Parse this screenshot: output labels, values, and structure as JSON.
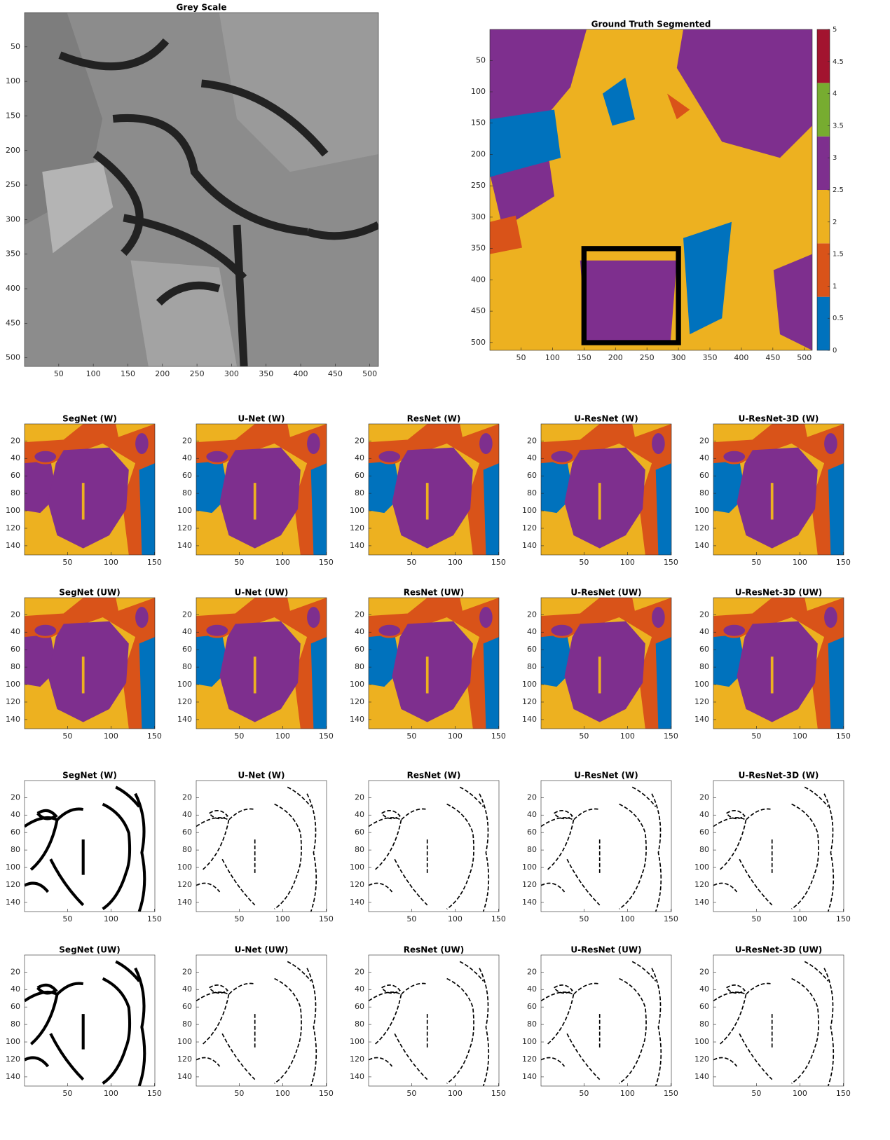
{
  "panels": [
    {
      "title": "Grey Scale",
      "xlim": [
        0.5,
        512.5
      ],
      "ylim": [
        0.5,
        512.5
      ],
      "xticks": [
        50,
        100,
        150,
        200,
        250,
        300,
        350,
        400,
        450,
        500
      ],
      "yticks": [
        50,
        100,
        150,
        200,
        250,
        300,
        350,
        400,
        450,
        500
      ]
    },
    {
      "title": "Ground Truth Segmented",
      "xlim": [
        0.5,
        512.5
      ],
      "ylim": [
        0.5,
        512.5
      ],
      "xticks": [
        50,
        100,
        150,
        200,
        250,
        300,
        350,
        400,
        450,
        500
      ],
      "yticks": [
        50,
        100,
        150,
        200,
        250,
        300,
        350,
        400,
        450,
        500
      ],
      "colorbar": {
        "lim": [
          0,
          5
        ],
        "ticks": [
          0,
          0.5,
          1,
          1.5,
          2,
          2.5,
          3,
          3.5,
          4,
          4.5,
          5
        ],
        "colors": [
          "#0072bd",
          "#d95319",
          "#edb120",
          "#7e2f8e",
          "#77ac30",
          "#a2142f"
        ]
      }
    },
    {
      "title": "SegNet (W)",
      "xlim": [
        0.5,
        150.5
      ],
      "ylim": [
        0.5,
        150.5
      ],
      "xticks": [
        50,
        100,
        150
      ],
      "yticks": [
        20,
        40,
        60,
        80,
        100,
        120,
        140
      ]
    },
    {
      "title": "U-Net (W)",
      "xlim": [
        0.5,
        150.5
      ],
      "ylim": [
        0.5,
        150.5
      ],
      "xticks": [
        50,
        100,
        150
      ],
      "yticks": [
        20,
        40,
        60,
        80,
        100,
        120,
        140
      ]
    },
    {
      "title": "ResNet (W)",
      "xlim": [
        0.5,
        150.5
      ],
      "ylim": [
        0.5,
        150.5
      ],
      "xticks": [
        50,
        100,
        150
      ],
      "yticks": [
        20,
        40,
        60,
        80,
        100,
        120,
        140
      ]
    },
    {
      "title": "U-ResNet (W)",
      "xlim": [
        0.5,
        150.5
      ],
      "ylim": [
        0.5,
        150.5
      ],
      "xticks": [
        50,
        100,
        150
      ],
      "yticks": [
        20,
        40,
        60,
        80,
        100,
        120,
        140
      ]
    },
    {
      "title": "U-ResNet-3D (W)",
      "xlim": [
        0.5,
        150.5
      ],
      "ylim": [
        0.5,
        150.5
      ],
      "xticks": [
        50,
        100,
        150
      ],
      "yticks": [
        20,
        40,
        60,
        80,
        100,
        120,
        140
      ]
    },
    {
      "title": "SegNet (UW)",
      "xlim": [
        0.5,
        150.5
      ],
      "ylim": [
        0.5,
        150.5
      ],
      "xticks": [
        50,
        100,
        150
      ],
      "yticks": [
        20,
        40,
        60,
        80,
        100,
        120,
        140
      ]
    },
    {
      "title": "U-Net (UW)",
      "xlim": [
        0.5,
        150.5
      ],
      "ylim": [
        0.5,
        150.5
      ],
      "xticks": [
        50,
        100,
        150
      ],
      "yticks": [
        20,
        40,
        60,
        80,
        100,
        120,
        140
      ]
    },
    {
      "title": "ResNet (UW)",
      "xlim": [
        0.5,
        150.5
      ],
      "ylim": [
        0.5,
        150.5
      ],
      "xticks": [
        50,
        100,
        150
      ],
      "yticks": [
        20,
        40,
        60,
        80,
        100,
        120,
        140
      ]
    },
    {
      "title": "U-ResNet (UW)",
      "xlim": [
        0.5,
        150.5
      ],
      "ylim": [
        0.5,
        150.5
      ],
      "xticks": [
        50,
        100,
        150
      ],
      "yticks": [
        20,
        40,
        60,
        80,
        100,
        120,
        140
      ]
    },
    {
      "title": "U-ResNet-3D (UW)",
      "xlim": [
        0.5,
        150.5
      ],
      "ylim": [
        0.5,
        150.5
      ],
      "xticks": [
        50,
        100,
        150
      ],
      "yticks": [
        20,
        40,
        60,
        80,
        100,
        120,
        140
      ]
    },
    {
      "title": "SegNet (W)",
      "xlim": [
        0.5,
        150.5
      ],
      "ylim": [
        0.5,
        150.5
      ],
      "xticks": [
        50,
        100,
        150
      ],
      "yticks": [
        20,
        40,
        60,
        80,
        100,
        120,
        140
      ]
    },
    {
      "title": "U-Net (W)",
      "xlim": [
        0.5,
        150.5
      ],
      "ylim": [
        0.5,
        150.5
      ],
      "xticks": [
        50,
        100,
        150
      ],
      "yticks": [
        20,
        40,
        60,
        80,
        100,
        120,
        140
      ]
    },
    {
      "title": "ResNet (W)",
      "xlim": [
        0.5,
        150.5
      ],
      "ylim": [
        0.5,
        150.5
      ],
      "xticks": [
        50,
        100,
        150
      ],
      "yticks": [
        20,
        40,
        60,
        80,
        100,
        120,
        140
      ]
    },
    {
      "title": "U-ResNet (W)",
      "xlim": [
        0.5,
        150.5
      ],
      "ylim": [
        0.5,
        150.5
      ],
      "xticks": [
        50,
        100,
        150
      ],
      "yticks": [
        20,
        40,
        60,
        80,
        100,
        120,
        140
      ]
    },
    {
      "title": "U-ResNet-3D (W)",
      "xlim": [
        0.5,
        150.5
      ],
      "ylim": [
        0.5,
        150.5
      ],
      "xticks": [
        50,
        100,
        150
      ],
      "yticks": [
        20,
        40,
        60,
        80,
        100,
        120,
        140
      ]
    },
    {
      "title": "SegNet (UW)",
      "xlim": [
        0.5,
        150.5
      ],
      "ylim": [
        0.5,
        150.5
      ],
      "xticks": [
        50,
        100,
        150
      ],
      "yticks": [
        20,
        40,
        60,
        80,
        100,
        120,
        140
      ]
    },
    {
      "title": "U-Net (UW)",
      "xlim": [
        0.5,
        150.5
      ],
      "ylim": [
        0.5,
        150.5
      ],
      "xticks": [
        50,
        100,
        150
      ],
      "yticks": [
        20,
        40,
        60,
        80,
        100,
        120,
        140
      ]
    },
    {
      "title": "ResNet (UW)",
      "xlim": [
        0.5,
        150.5
      ],
      "ylim": [
        0.5,
        150.5
      ],
      "xticks": [
        50,
        100,
        150
      ],
      "yticks": [
        20,
        40,
        60,
        80,
        100,
        120,
        140
      ]
    },
    {
      "title": "U-ResNet (UW)",
      "xlim": [
        0.5,
        150.5
      ],
      "ylim": [
        0.5,
        150.5
      ],
      "xticks": [
        50,
        100,
        150
      ],
      "yticks": [
        20,
        40,
        60,
        80,
        100,
        120,
        140
      ]
    },
    {
      "title": "U-ResNet-3D (UW)",
      "xlim": [
        0.5,
        150.5
      ],
      "ylim": [
        0.5,
        150.5
      ],
      "xticks": [
        50,
        100,
        150
      ],
      "yticks": [
        20,
        40,
        60,
        80,
        100,
        120,
        140
      ]
    }
  ]
}
